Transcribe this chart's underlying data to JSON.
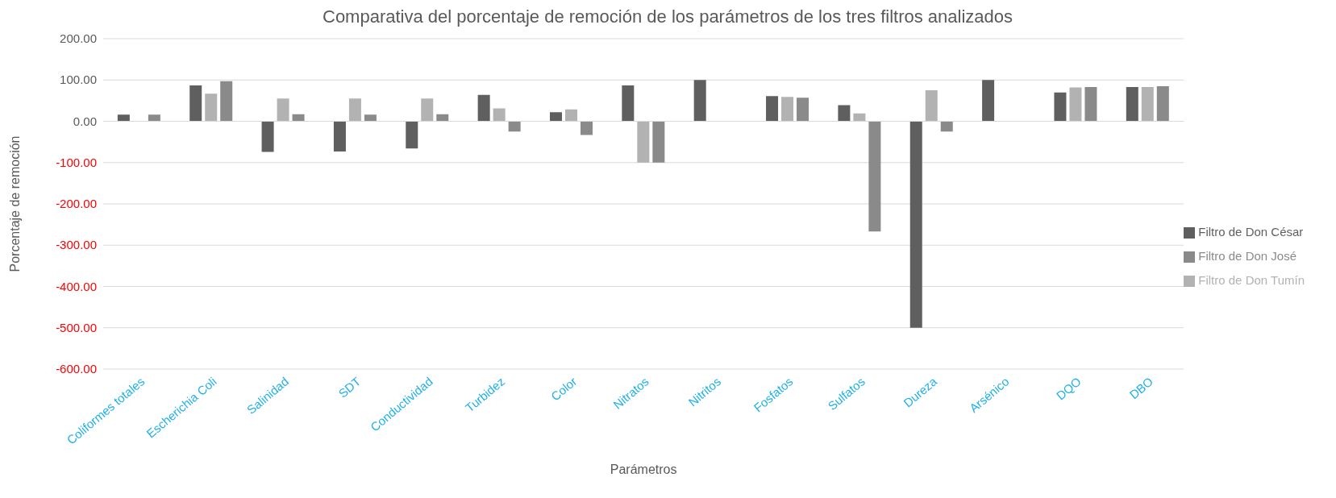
{
  "chart_data": {
    "type": "bar",
    "title": "Comparativa del porcentaje de remoción de los parámetros de los tres filtros analizados",
    "xlabel": "Parámetros",
    "ylabel": "Porcentaje de remoción",
    "categories": [
      "Coliformes totales",
      "Escherichia Coli",
      "Salinidad",
      "SDT",
      "Conductividad",
      "Turbidez",
      "Color",
      "Nitratos",
      "Nitritos",
      "Fosfatos",
      "Sulfatos",
      "Dureza",
      "Arsénico",
      "DQO",
      "DBO"
    ],
    "series": [
      {
        "name": "Filtro de Don César",
        "color": "#5f5f5f",
        "values": [
          16,
          87,
          -74,
          -73,
          -66,
          64,
          22,
          87,
          100,
          61,
          39,
          -500,
          100,
          70,
          83
        ]
      },
      {
        "name": "Filtro de Don Tumín",
        "color": "#b2b2b2",
        "values": [
          null,
          67,
          55,
          55,
          55,
          31,
          29,
          -100,
          null,
          59,
          19,
          75,
          null,
          82,
          83
        ]
      },
      {
        "name": "Filtro de Don José",
        "color": "#8a8a8a",
        "values": [
          16,
          97,
          17,
          16,
          17,
          -25,
          -33,
          -100,
          null,
          57,
          -267,
          -25,
          null,
          83,
          85
        ]
      }
    ],
    "ylim": [
      -600,
      200
    ],
    "yticks": [
      {
        "value": 200,
        "label": "200.00"
      },
      {
        "value": 100,
        "label": "100.00"
      },
      {
        "value": 0,
        "label": "0.00"
      },
      {
        "value": -100,
        "label": "-100.00"
      },
      {
        "value": -200,
        "label": "-200.00"
      },
      {
        "value": -300,
        "label": "-300.00"
      },
      {
        "value": -400,
        "label": "-400.00"
      },
      {
        "value": -500,
        "label": "-500.00"
      },
      {
        "value": -600,
        "label": "-600.00"
      }
    ],
    "grid": "y",
    "legend": "right"
  }
}
